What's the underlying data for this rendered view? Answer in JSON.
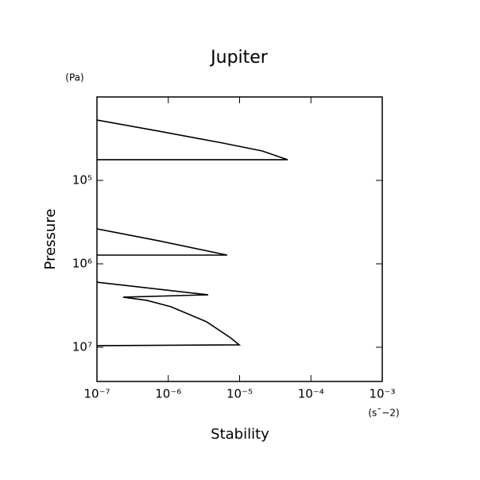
{
  "chart_data": {
    "type": "line",
    "title": "Jupiter",
    "xlabel": "Stability",
    "ylabel": "Pressure",
    "xunit": "(s¯−2)",
    "yunit": "(Pa)",
    "xscale": "log",
    "yscale": "log",
    "y_inverted": true,
    "xlim": [
      1e-07,
      0.001
    ],
    "ylim": [
      10000,
      25700000
    ],
    "xticks": [
      {
        "value": 1e-07,
        "label": "10⁻⁷"
      },
      {
        "value": 1e-06,
        "label": "10⁻⁶"
      },
      {
        "value": 1e-05,
        "label": "10⁻⁵"
      },
      {
        "value": 0.0001,
        "label": "10⁻⁴"
      },
      {
        "value": 0.001,
        "label": "10⁻³"
      }
    ],
    "yticks": [
      {
        "value": 100000,
        "label": "10⁵"
      },
      {
        "value": 1000000,
        "label": "10⁶"
      },
      {
        "value": 10000000,
        "label": "10⁷"
      }
    ],
    "series": [
      {
        "color": "#000000",
        "x": [
          1e-07,
          7.4e-07,
          5.8e-06,
          2.08e-05,
          4.72e-05,
          1e-07
        ],
        "values": [
          18900,
          25700,
          35700,
          44400,
          56500,
          56500
        ]
      },
      {
        "color": "#000000",
        "x": [
          1e-07,
          7.4e-07,
          6.7e-06,
          1e-07
        ],
        "values": [
          381000,
          530000,
          786000,
          786000
        ]
      },
      {
        "color": "#000000",
        "x": [
          1e-07,
          3.63e-06,
          2.33e-07,
          5e-07,
          1.09e-06,
          3.45e-06,
          7.45e-06,
          9.87e-06,
          1e-07
        ],
        "values": [
          1660000,
          2350000,
          2510000,
          2740000,
          3270000,
          4950000,
          7690000,
          9360000,
          9570000
        ]
      }
    ]
  }
}
